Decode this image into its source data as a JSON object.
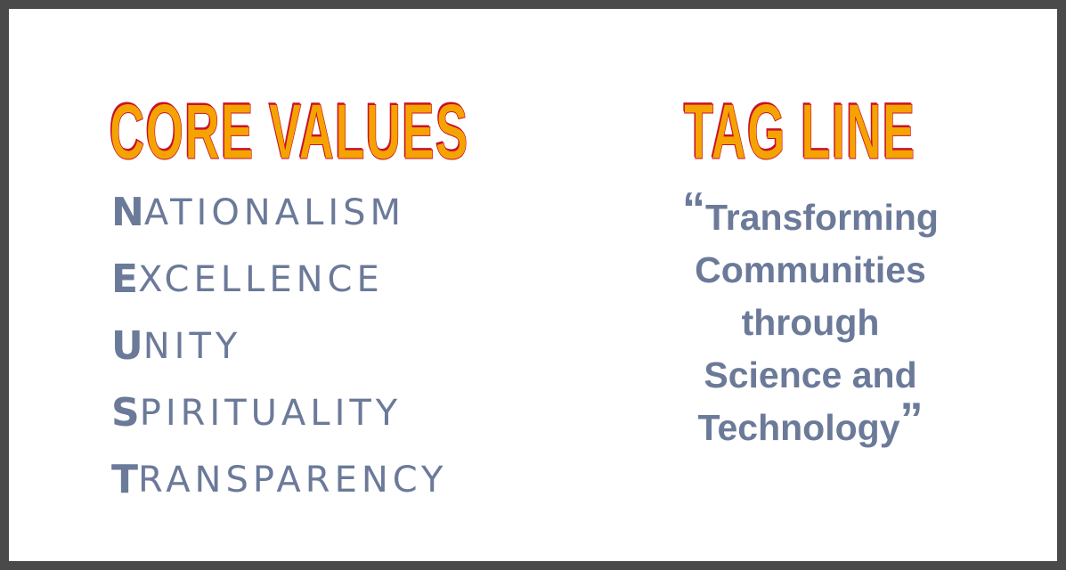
{
  "core_values": {
    "heading": "CORE VALUES",
    "items": [
      {
        "initial": "N",
        "rest": "ATIONALISM"
      },
      {
        "initial": "E",
        "rest": "XCELLENCE"
      },
      {
        "initial": "U",
        "rest": "NITY"
      },
      {
        "initial": "S",
        "rest": "PIRITUALITY"
      },
      {
        "initial": "T",
        "rest": "RANSPARENCY"
      }
    ]
  },
  "tag_line": {
    "heading": "TAG LINE",
    "open_quote": "“",
    "close_quote": "”",
    "lines": [
      "Transforming",
      "Communities",
      "through",
      "Science and",
      "Technology"
    ]
  },
  "colors": {
    "heading_fill": "#f5a300",
    "heading_outline": "#c8102e",
    "body_text": "#6b7a99",
    "frame": "#4a4a4a",
    "background": "#ffffff"
  }
}
